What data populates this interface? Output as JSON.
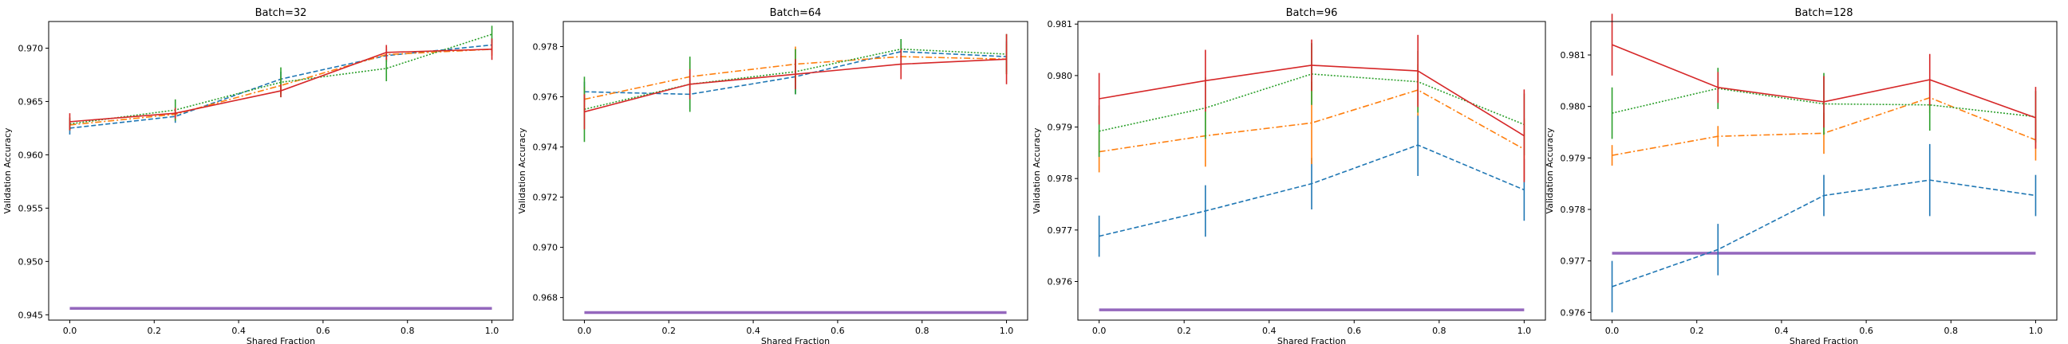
{
  "chart_data": [
    {
      "type": "line",
      "title": "Batch=32",
      "xlabel": "Shared Fraction",
      "ylabel": "Validation Accuracy",
      "xlim": [
        -0.05,
        1.05
      ],
      "ylim": [
        0.9445,
        0.9725
      ],
      "xticks": [
        "0.0",
        "0.2",
        "0.4",
        "0.6",
        "0.8",
        "1.0"
      ],
      "yticks": [
        "0.945",
        "0.950",
        "0.955",
        "0.960",
        "0.965",
        "0.970"
      ],
      "x": [
        0.0,
        0.25,
        0.5,
        0.75,
        1.0
      ],
      "baseline": 0.9456,
      "series": [
        {
          "style": "blue-dashed",
          "color": "#1f77b4",
          "dash": "6,3",
          "values": [
            0.9625,
            0.9636,
            0.9671,
            0.9693,
            0.9703
          ],
          "err": [
            0.0006,
            0.0006,
            0.0007,
            0.0006,
            0.0006
          ]
        },
        {
          "style": "orange-dashdot",
          "color": "#ff7f0e",
          "dash": "8,3,2,3",
          "values": [
            0.9628,
            0.9638,
            0.9665,
            0.9694,
            0.9699
          ],
          "err": [
            0.0005,
            0.0006,
            0.0008,
            0.0007,
            0.0006
          ]
        },
        {
          "style": "green-dotted",
          "color": "#2ca02c",
          "dash": "2,2",
          "values": [
            0.9629,
            0.9642,
            0.9668,
            0.9681,
            0.9713
          ],
          "err": [
            0.0006,
            0.001,
            0.0014,
            0.0012,
            0.0008
          ]
        },
        {
          "style": "red-solid",
          "color": "#d62728",
          "dash": "",
          "values": [
            0.9631,
            0.9639,
            0.966,
            0.9696,
            0.9699
          ],
          "err": [
            0.0008,
            0.0005,
            0.0006,
            0.0007,
            0.001
          ]
        }
      ]
    },
    {
      "type": "line",
      "title": "Batch=64",
      "xlabel": "Shared Fraction",
      "ylabel": "Validation Accuracy",
      "xlim": [
        -0.05,
        1.05
      ],
      "ylim": [
        0.9671,
        0.979
      ],
      "xticks": [
        "0.0",
        "0.2",
        "0.4",
        "0.6",
        "0.8",
        "1.0"
      ],
      "yticks": [
        "0.968",
        "0.970",
        "0.972",
        "0.974",
        "0.976",
        "0.978"
      ],
      "x": [
        0.0,
        0.25,
        0.5,
        0.75,
        1.0
      ],
      "baseline": 0.9674,
      "series": [
        {
          "style": "blue-dashed",
          "color": "#1f77b4",
          "dash": "6,3",
          "values": [
            0.9762,
            0.9761,
            0.9768,
            0.9778,
            0.9776
          ],
          "err": [
            0.0004,
            0.0006,
            0.0007,
            0.0005,
            0.0006
          ]
        },
        {
          "style": "orange-dashdot",
          "color": "#ff7f0e",
          "dash": "8,3,2,3",
          "values": [
            0.9759,
            0.9768,
            0.9773,
            0.9776,
            0.9775
          ],
          "err": [
            0.0005,
            0.0006,
            0.0007,
            0.0005,
            0.0006
          ]
        },
        {
          "style": "green-dotted",
          "color": "#2ca02c",
          "dash": "2,2",
          "values": [
            0.9755,
            0.9765,
            0.977,
            0.9779,
            0.9777
          ],
          "err": [
            0.0013,
            0.0011,
            0.0009,
            0.0004,
            0.0008
          ]
        },
        {
          "style": "red-solid",
          "color": "#d62728",
          "dash": "",
          "values": [
            0.9754,
            0.9765,
            0.9769,
            0.9773,
            0.9775
          ],
          "err": [
            0.0007,
            0.0006,
            0.0006,
            0.0006,
            0.001
          ]
        }
      ]
    },
    {
      "type": "line",
      "title": "Batch=96",
      "xlabel": "Shared Fraction",
      "ylabel": "Validation Accuracy",
      "xlim": [
        -0.05,
        1.05
      ],
      "ylim": [
        0.97525,
        0.98105
      ],
      "xticks": [
        "0.0",
        "0.2",
        "0.4",
        "0.6",
        "0.8",
        "1.0"
      ],
      "yticks": [
        "0.976",
        "0.977",
        "0.978",
        "0.979",
        "0.980",
        "0.981"
      ],
      "x": [
        0.0,
        0.25,
        0.5,
        0.75,
        1.0
      ],
      "baseline": 0.97545,
      "series": [
        {
          "style": "blue-dashed",
          "color": "#1f77b4",
          "dash": "6,3",
          "values": [
            0.97688,
            0.97737,
            0.9779,
            0.97865,
            0.97778
          ],
          "err": [
            0.0004,
            0.0005,
            0.0005,
            0.0006,
            0.0006
          ]
        },
        {
          "style": "orange-dashdot",
          "color": "#ff7f0e",
          "dash": "8,3,2,3",
          "values": [
            0.97852,
            0.97883,
            0.97908,
            0.97972,
            0.97857
          ],
          "err": [
            0.0004,
            0.0006,
            0.0008,
            0.0005,
            0.0006
          ]
        },
        {
          "style": "green-dotted",
          "color": "#2ca02c",
          "dash": "2,2",
          "values": [
            0.97892,
            0.97937,
            0.98003,
            0.97988,
            0.97905
          ],
          "err": [
            0.0005,
            0.0006,
            0.0006,
            0.0006,
            0.0006
          ]
        },
        {
          "style": "red-solid",
          "color": "#d62728",
          "dash": "",
          "values": [
            0.97955,
            0.9799,
            0.9802,
            0.98009,
            0.97883
          ],
          "err": [
            0.0005,
            0.0006,
            0.0005,
            0.0007,
            0.0009
          ]
        }
      ]
    },
    {
      "type": "line",
      "title": "Batch=128",
      "xlabel": "Shared Fraction",
      "ylabel": "Validation Accuracy",
      "xlim": [
        -0.05,
        1.05
      ],
      "ylim": [
        0.97585,
        0.98165
      ],
      "xticks": [
        "0.0",
        "0.2",
        "0.4",
        "0.6",
        "0.8",
        "1.0"
      ],
      "yticks": [
        "0.976",
        "0.977",
        "0.978",
        "0.979",
        "0.980",
        "0.981"
      ],
      "x": [
        0.0,
        0.25,
        0.5,
        0.75,
        1.0
      ],
      "baseline": 0.97715,
      "series": [
        {
          "style": "blue-dashed",
          "color": "#1f77b4",
          "dash": "6,3",
          "values": [
            0.9765,
            0.97722,
            0.97827,
            0.97857,
            0.97827
          ],
          "err": [
            0.0005,
            0.0005,
            0.0004,
            0.0007,
            0.0004
          ]
        },
        {
          "style": "orange-dashdot",
          "color": "#ff7f0e",
          "dash": "8,3,2,3",
          "values": [
            0.97905,
            0.97942,
            0.97948,
            0.98017,
            0.97935
          ],
          "err": [
            0.0002,
            0.0002,
            0.0004,
            0.0003,
            0.0004
          ]
        },
        {
          "style": "green-dotted",
          "color": "#2ca02c",
          "dash": "2,2",
          "values": [
            0.97987,
            0.98035,
            0.98005,
            0.98003,
            0.9798
          ],
          "err": [
            0.0005,
            0.0004,
            0.0006,
            0.0005,
            0.0005
          ]
        },
        {
          "style": "red-solid",
          "color": "#d62728",
          "dash": "",
          "values": [
            0.9812,
            0.98037,
            0.98009,
            0.98052,
            0.97978
          ],
          "err": [
            0.0006,
            0.0003,
            0.0005,
            0.0005,
            0.0006
          ]
        }
      ]
    }
  ],
  "colors": {
    "baseline": "#9467bd",
    "axes": "#000000",
    "background": "#ffffff"
  }
}
